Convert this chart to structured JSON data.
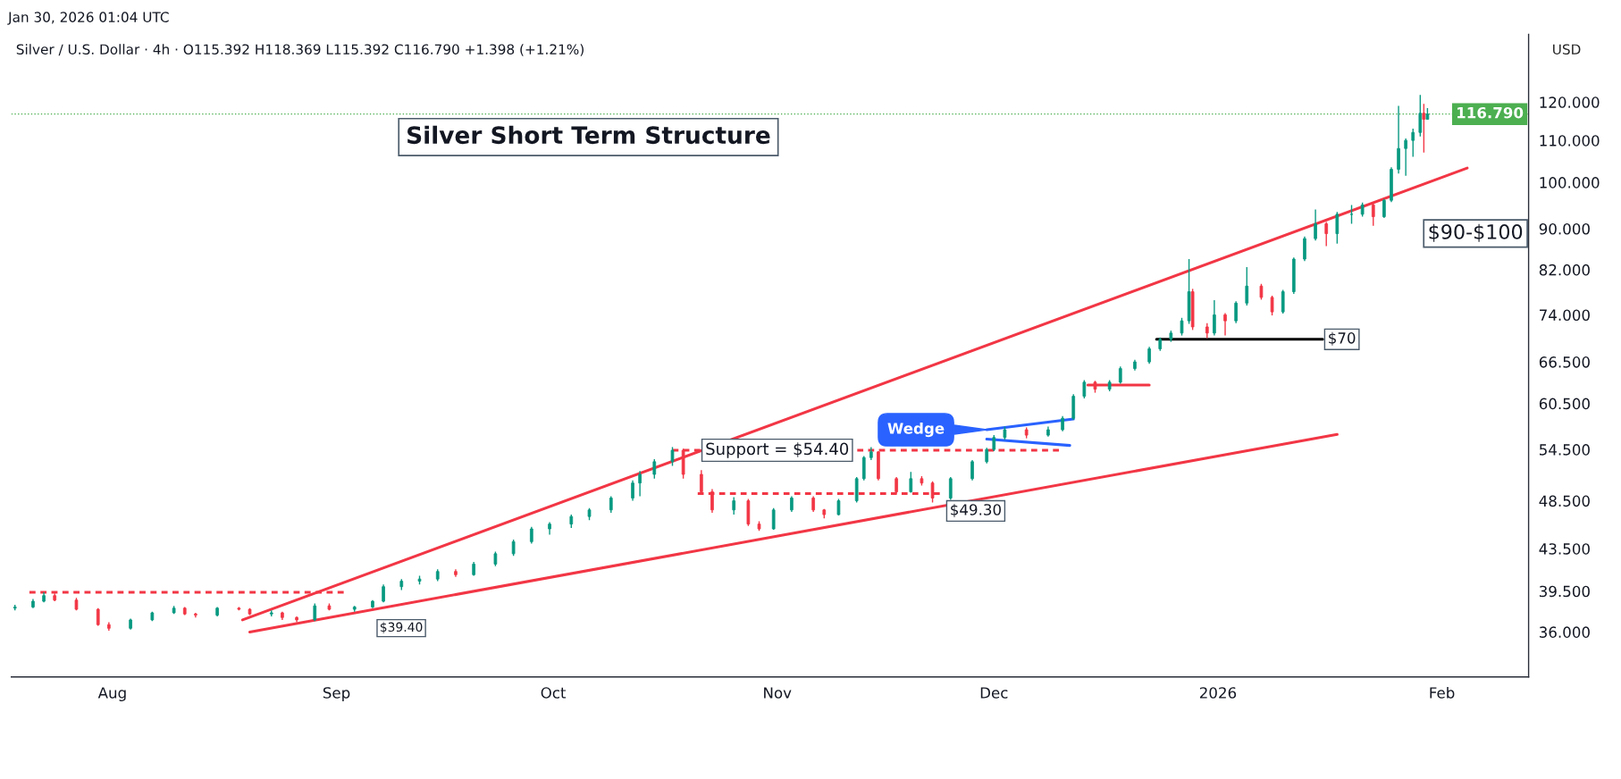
{
  "chart_data": {
    "type": "candlestick",
    "title": "Silver Short Term Structure",
    "subtitle": "Silver / U.S. Dollar · 4h · O115.392 H118.369 L115.392 C116.790 +1.398 (+1.21%)",
    "ylabel": "USD",
    "annotations": [
      "Jan 30, 2026 01:04 UTC",
      "$39.40",
      {
        "text": "Support = $54.40",
        "x": "2025-11-01",
        "y": 54.4
      },
      {
        "text": "$49.30",
        "x": "2025-11-23T12:00",
        "y": 49.3
      },
      {
        "text": "Wedge",
        "x": "2025-11-30",
        "y": 57.0
      },
      {
        "text": "$70",
        "x": "2026-01-15T12:00",
        "y": 70
      },
      "$90-$100"
    ],
    "x": [
      "2025-07-18T12:00",
      "2025-07-21",
      "2025-07-22T12:00",
      "2025-07-24",
      "2025-07-27",
      "2025-07-30",
      "2025-07-31T12:00",
      "2025-08-03T12:00",
      "2025-08-06T12:00",
      "2025-08-09T12:00",
      "2025-08-11",
      "2025-08-12T12:00",
      "2025-08-15T12:00",
      "2025-08-18T12:00",
      "2025-08-20",
      "2025-08-23",
      "2025-08-24T12:00",
      "2025-08-26T12:00",
      "2025-08-29",
      "2025-08-31",
      "2025-09-03T12:00",
      "2025-09-06",
      "2025-09-07T12:00",
      "2025-09-10",
      "2025-09-12T12:00",
      "2025-09-15",
      "2025-09-17T12:00",
      "2025-09-20",
      "2025-09-23",
      "2025-09-25T12:00",
      "2025-09-28",
      "2025-09-30T12:00",
      "2025-10-03T12:00",
      "2025-10-06",
      "2025-10-09",
      "2025-10-12",
      "2025-10-13",
      "2025-10-15",
      "2025-10-17T12:00",
      "2025-10-19",
      "2025-10-21T12:00",
      "2025-10-23",
      "2025-10-26",
      "2025-10-28",
      "2025-10-29T12:00",
      "2025-10-31T12:00",
      "2025-11-03",
      "2025-11-06",
      "2025-11-07T12:00",
      "2025-11-09T12:00",
      "2025-11-12",
      "2025-11-13",
      "2025-11-14",
      "2025-11-15",
      "2025-11-17T12:00",
      "2025-11-19T12:00",
      "2025-11-21",
      "2025-11-22T12:00",
      "2025-11-25",
      "2025-11-28",
      "2025-11-30",
      "2025-12-01",
      "2025-12-02T12:00",
      "2025-12-05T12:00",
      "2025-12-08T12:00",
      "2025-12-10T12:00",
      "2025-12-12",
      "2025-12-13T12:00",
      "2025-12-15",
      "2025-12-17",
      "2025-12-18T12:00",
      "2025-12-20T12:00",
      "2025-12-22T12:00",
      "2025-12-24",
      "2025-12-25T12:00",
      "2025-12-27",
      "2025-12-28",
      "2025-12-28T12:00",
      "2025-12-30T12:00",
      "2025-12-31T12:00",
      "2026-01-02",
      "2026-01-03T12:00",
      "2026-01-05",
      "2026-01-07",
      "2026-01-08T12:00",
      "2026-01-10",
      "2026-01-11T12:00",
      "2026-01-13",
      "2026-01-14T12:00",
      "2026-01-16",
      "2026-01-17T12:00",
      "2026-01-19T12:00",
      "2026-01-21",
      "2026-01-22T12:00",
      "2026-01-24",
      "2026-01-25",
      "2026-01-26",
      "2026-01-27",
      "2026-01-28",
      "2026-01-29",
      "2026-01-29T12:00",
      "2026-01-30"
    ],
    "ohlc": [
      [
        38.0,
        38.3,
        37.8,
        38.1
      ],
      [
        38.1,
        38.8,
        38.0,
        38.6
      ],
      [
        38.6,
        39.4,
        38.5,
        39.1
      ],
      [
        39.1,
        39.3,
        38.6,
        38.7
      ],
      [
        38.7,
        38.9,
        37.8,
        37.9
      ],
      [
        37.9,
        38.0,
        36.5,
        36.6
      ],
      [
        36.6,
        36.8,
        36.1,
        36.3
      ],
      [
        36.3,
        37.1,
        36.2,
        37.0
      ],
      [
        37.0,
        37.7,
        36.9,
        37.6
      ],
      [
        37.6,
        38.2,
        37.5,
        38.0
      ],
      [
        38.0,
        38.1,
        37.4,
        37.5
      ],
      [
        37.5,
        37.6,
        37.2,
        37.4
      ],
      [
        37.4,
        38.1,
        37.3,
        38.0
      ],
      [
        38.0,
        38.1,
        37.8,
        37.9
      ],
      [
        37.9,
        38.0,
        37.4,
        37.5
      ],
      [
        37.5,
        37.8,
        37.3,
        37.6
      ],
      [
        37.6,
        37.7,
        37.0,
        37.2
      ],
      [
        37.2,
        37.3,
        36.8,
        37.0
      ],
      [
        37.0,
        38.4,
        36.9,
        38.2
      ],
      [
        38.2,
        38.4,
        37.8,
        37.9
      ],
      [
        37.9,
        38.2,
        37.7,
        38.1
      ],
      [
        38.1,
        38.7,
        38.0,
        38.6
      ],
      [
        38.6,
        40.1,
        38.5,
        39.9
      ],
      [
        39.9,
        40.6,
        39.6,
        40.4
      ],
      [
        40.4,
        40.9,
        40.1,
        40.6
      ],
      [
        40.6,
        41.5,
        40.4,
        41.3
      ],
      [
        41.3,
        41.5,
        40.8,
        41.0
      ],
      [
        41.0,
        42.2,
        40.9,
        42.0
      ],
      [
        42.0,
        43.2,
        41.8,
        43.0
      ],
      [
        43.0,
        44.4,
        42.8,
        44.2
      ],
      [
        44.2,
        45.7,
        44.0,
        45.5
      ],
      [
        45.5,
        46.2,
        44.9,
        46.0
      ],
      [
        46.0,
        47.0,
        45.6,
        46.8
      ],
      [
        46.8,
        47.7,
        46.4,
        47.5
      ],
      [
        47.5,
        49.0,
        47.2,
        48.8
      ],
      [
        48.8,
        50.8,
        48.5,
        50.5
      ],
      [
        50.5,
        51.9,
        49.0,
        51.5
      ],
      [
        51.5,
        53.3,
        51.0,
        53.0
      ],
      [
        53.0,
        54.8,
        52.5,
        54.4
      ],
      [
        54.4,
        54.6,
        51.0,
        51.5
      ],
      [
        51.5,
        52.0,
        49.2,
        49.5
      ],
      [
        49.5,
        49.8,
        47.2,
        47.5
      ],
      [
        47.5,
        48.9,
        47.0,
        48.5
      ],
      [
        48.5,
        48.7,
        45.8,
        46.0
      ],
      [
        46.0,
        46.3,
        45.3,
        45.5
      ],
      [
        45.5,
        47.7,
        45.4,
        47.5
      ],
      [
        47.5,
        49.0,
        47.3,
        48.8
      ],
      [
        48.8,
        49.0,
        47.3,
        47.5
      ],
      [
        47.5,
        47.6,
        46.6,
        47.0
      ],
      [
        47.0,
        48.7,
        46.9,
        48.5
      ],
      [
        48.5,
        51.2,
        48.3,
        51.0
      ],
      [
        51.0,
        53.7,
        50.8,
        53.5
      ],
      [
        53.5,
        54.8,
        53.2,
        54.2
      ],
      [
        54.2,
        54.3,
        50.8,
        51.0
      ],
      [
        51.0,
        51.2,
        49.3,
        49.5
      ],
      [
        49.5,
        51.8,
        49.4,
        51.0
      ],
      [
        51.0,
        51.3,
        50.2,
        50.5
      ],
      [
        50.5,
        50.7,
        48.3,
        48.8
      ],
      [
        48.8,
        51.2,
        48.6,
        51.0
      ],
      [
        51.0,
        53.2,
        50.8,
        53.0
      ],
      [
        53.0,
        54.7,
        52.8,
        54.5
      ],
      [
        54.5,
        56.3,
        54.3,
        56.0
      ],
      [
        56.0,
        57.4,
        55.7,
        57.0
      ],
      [
        57.0,
        57.3,
        55.9,
        56.3
      ],
      [
        56.3,
        57.4,
        56.1,
        57.0
      ],
      [
        57.0,
        58.8,
        56.8,
        58.5
      ],
      [
        58.5,
        61.8,
        58.3,
        61.5
      ],
      [
        61.5,
        63.8,
        61.2,
        63.5
      ],
      [
        63.5,
        63.7,
        62.0,
        62.5
      ],
      [
        62.5,
        63.8,
        62.2,
        63.5
      ],
      [
        63.5,
        65.8,
        63.3,
        65.5
      ],
      [
        65.5,
        66.8,
        65.2,
        66.5
      ],
      [
        66.5,
        68.8,
        66.2,
        68.5
      ],
      [
        68.5,
        70.3,
        68.2,
        70.0
      ],
      [
        70.0,
        71.4,
        69.6,
        71.0
      ],
      [
        71.0,
        73.5,
        70.6,
        73.0
      ],
      [
        73.0,
        84.0,
        72.5,
        78.0
      ],
      [
        78.0,
        78.5,
        71.5,
        72.0
      ],
      [
        72.0,
        72.6,
        70.2,
        71.0
      ],
      [
        71.0,
        76.5,
        70.6,
        74.0
      ],
      [
        74.0,
        74.3,
        70.6,
        73.0
      ],
      [
        73.0,
        76.3,
        72.6,
        76.0
      ],
      [
        76.0,
        82.5,
        75.6,
        79.0
      ],
      [
        79.0,
        79.4,
        76.6,
        77.0
      ],
      [
        77.0,
        77.3,
        73.9,
        74.5
      ],
      [
        74.5,
        78.3,
        74.2,
        78.0
      ],
      [
        78.0,
        84.3,
        77.6,
        84.0
      ],
      [
        84.0,
        88.4,
        83.6,
        88.0
      ],
      [
        88.0,
        94.0,
        87.6,
        91.0
      ],
      [
        91.0,
        91.4,
        86.5,
        89.0
      ],
      [
        89.0,
        93.5,
        87.0,
        93.0
      ],
      [
        93.0,
        95.0,
        91.0,
        93.0
      ],
      [
        93.0,
        95.5,
        92.5,
        95.0
      ],
      [
        95.0,
        95.3,
        90.6,
        92.5
      ],
      [
        92.5,
        96.3,
        92.2,
        96.0
      ],
      [
        96.0,
        103.5,
        95.6,
        103.0
      ],
      [
        103.0,
        119.0,
        102.0,
        108.0
      ],
      [
        108.0,
        110.5,
        101.5,
        110.0
      ],
      [
        110.0,
        113.0,
        106.0,
        112.0
      ],
      [
        112.0,
        122.0,
        111.0,
        117.0
      ],
      [
        117.0,
        119.5,
        107.0,
        115.4
      ],
      [
        115.392,
        118.369,
        115.392,
        116.79
      ]
    ],
    "series": [
      {
        "type": "line",
        "color": "#f23645",
        "x": [
          "2025-08-19",
          "2026-02-04T12:00"
        ],
        "values": [
          37.0,
          103.3
        ]
      },
      {
        "type": "line",
        "color": "#f23645",
        "x": [
          "2025-08-20",
          "2026-01-17T12:00"
        ],
        "values": [
          36.0,
          56.4
        ]
      },
      {
        "type": "line",
        "color": "#f23645",
        "line_style": "dashed",
        "x": [
          "2025-07-20T12:00",
          "2025-09-02"
        ],
        "values": [
          39.4,
          39.4
        ]
      },
      {
        "type": "line",
        "color": "#f23645",
        "line_style": "dashed",
        "x": [
          "2025-10-17T12:00",
          "2025-12-10"
        ],
        "values": [
          54.4,
          54.4
        ]
      },
      {
        "type": "line",
        "color": "#f23645",
        "line_style": "dashed",
        "x": [
          "2025-10-21",
          "2025-11-23T12:00"
        ],
        "values": [
          49.3,
          49.3
        ]
      },
      {
        "type": "line",
        "color": "#f23645",
        "x": [
          "2025-12-14",
          "2025-12-22T12:00"
        ],
        "values": [
          63.1,
          63.1
        ]
      },
      {
        "type": "line",
        "color": "#000000",
        "x": [
          "2025-12-23T12:00",
          "2026-01-15T12:00"
        ],
        "values": [
          70,
          70
        ]
      },
      {
        "type": "line",
        "color": "#2962ff",
        "x": [
          "2025-11-30",
          "2025-12-12"
        ],
        "values": [
          57.0,
          58.4
        ]
      },
      {
        "type": "line",
        "color": "#2962ff",
        "x": [
          "2025-11-30",
          "2025-12-11T12:00"
        ],
        "values": [
          55.8,
          55.0
        ]
      }
    ],
    "ref_lines": [
      {
        "axis": "y",
        "value": 116.79,
        "label": "116.790",
        "color": "#4caf50",
        "line_style": "dotted"
      }
    ],
    "log": "y",
    "xlim": [
      "2025-07-18",
      "2026-02-13"
    ],
    "xticks": [
      {
        "value": "2025-08-01",
        "label": "Aug"
      },
      {
        "value": "2025-09-01",
        "label": "Sep"
      },
      {
        "value": "2025-10-01",
        "label": "Oct"
      },
      {
        "value": "2025-11-01",
        "label": "Nov"
      },
      {
        "value": "2025-12-01",
        "label": "Dec"
      },
      {
        "value": "2026-01-01",
        "label": "2026"
      },
      {
        "value": "2026-02-01",
        "label": "Feb"
      }
    ],
    "ylim": [
      32.5,
      140
    ],
    "yticks": [
      {
        "value": 36,
        "label": "36.000"
      },
      {
        "value": 39.5,
        "label": "39.500"
      },
      {
        "value": 43.5,
        "label": "43.500"
      },
      {
        "value": 48.5,
        "label": "48.500"
      },
      {
        "value": 54.5,
        "label": "54.500"
      },
      {
        "value": 60.5,
        "label": "60.500"
      },
      {
        "value": 66.5,
        "label": "66.500"
      },
      {
        "value": 74,
        "label": "74.000"
      },
      {
        "value": 82,
        "label": "82.000"
      },
      {
        "value": 90,
        "label": "90.000"
      },
      {
        "value": 100,
        "label": "100.000"
      },
      {
        "value": 110,
        "label": "110.000"
      },
      {
        "value": 120,
        "label": "120.000"
      }
    ],
    "grid": false
  }
}
